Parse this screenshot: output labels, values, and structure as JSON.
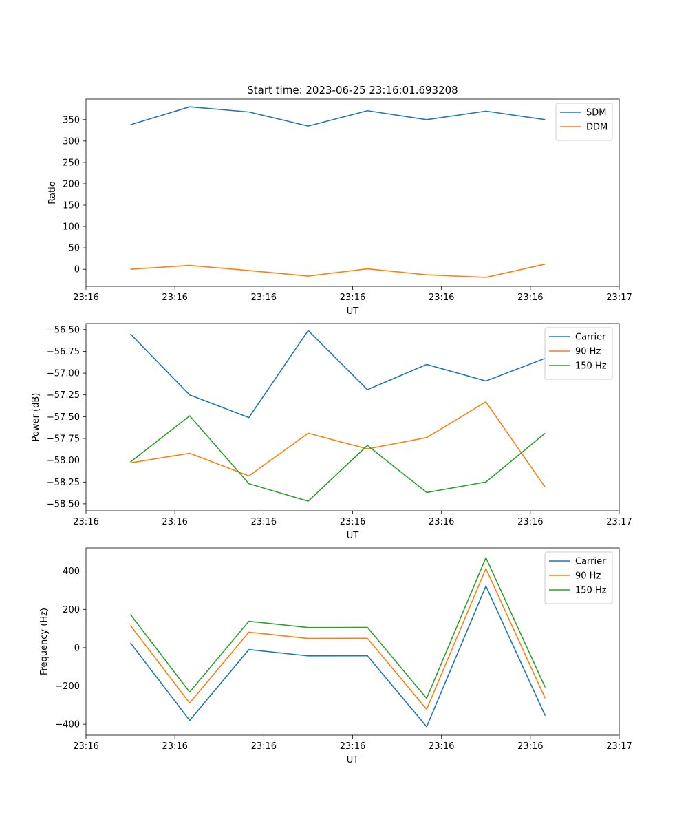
{
  "title": "Start time: 2023-06-25 23:16:01.693208",
  "colors": {
    "blue": "#1f77b4",
    "orange": "#ff7f0e",
    "green": "#2ca02c"
  },
  "chart_data": [
    {
      "type": "line",
      "title": "Start time: 2023-06-25 23:16:01.693208",
      "xlabel": "UT",
      "ylabel": "Ratio",
      "x": [
        1,
        2,
        3,
        4,
        5,
        6,
        7,
        8
      ],
      "xlim": [
        0.25,
        9.25
      ],
      "xticks": [
        0.25,
        1.75,
        3.25,
        4.75,
        6.25,
        7.75,
        9.25
      ],
      "xtick_labels": [
        "23:16",
        "23:16",
        "23:16",
        "23:16",
        "23:16",
        "23:16",
        "23:17"
      ],
      "ylim": [
        -40,
        398
      ],
      "yticks": [
        0,
        50,
        100,
        150,
        200,
        250,
        300,
        350
      ],
      "ytick_labels": [
        "0",
        "50",
        "100",
        "150",
        "200",
        "250",
        "300",
        "350"
      ],
      "grid": false,
      "legend": "top-right",
      "series": [
        {
          "name": "SDM",
          "color": "#1f77b4",
          "values": [
            338,
            380,
            368,
            335,
            371,
            350,
            370,
            350
          ]
        },
        {
          "name": "DDM",
          "color": "#ff7f0e",
          "values": [
            0,
            9,
            -3,
            -16,
            1,
            -13,
            -19,
            12
          ]
        }
      ]
    },
    {
      "type": "line",
      "xlabel": "UT",
      "ylabel": "Power (dB)",
      "x": [
        1,
        2,
        3,
        4,
        5,
        6,
        7,
        8
      ],
      "xlim": [
        0.25,
        9.25
      ],
      "xticks": [
        0.25,
        1.75,
        3.25,
        4.75,
        6.25,
        7.75,
        9.25
      ],
      "xtick_labels": [
        "23:16",
        "23:16",
        "23:16",
        "23:16",
        "23:16",
        "23:16",
        "23:17"
      ],
      "ylim": [
        -58.58,
        -56.43
      ],
      "yticks": [
        -58.5,
        -58.25,
        -58.0,
        -57.75,
        -57.5,
        -57.25,
        -57.0,
        -56.75,
        -56.5
      ],
      "ytick_labels": [
        "−58.50",
        "−58.25",
        "−58.00",
        "−57.75",
        "−57.50",
        "−57.25",
        "−57.00",
        "−56.75",
        "−56.50"
      ],
      "grid": false,
      "legend": "top-right",
      "series": [
        {
          "name": "Carrier",
          "color": "#1f77b4",
          "values": [
            -56.55,
            -57.25,
            -57.51,
            -56.51,
            -57.19,
            -56.9,
            -57.09,
            -56.83
          ]
        },
        {
          "name": "90 Hz",
          "color": "#ff7f0e",
          "values": [
            -58.03,
            -57.92,
            -58.18,
            -57.69,
            -57.87,
            -57.74,
            -57.33,
            -58.31
          ]
        },
        {
          "name": "150 Hz",
          "color": "#2ca02c",
          "values": [
            -58.02,
            -57.49,
            -58.27,
            -58.47,
            -57.83,
            -58.37,
            -58.25,
            -57.69
          ]
        }
      ]
    },
    {
      "type": "line",
      "xlabel": "UT",
      "ylabel": "Frequency (Hz)",
      "x": [
        1,
        2,
        3,
        4,
        5,
        6,
        7,
        8
      ],
      "xlim": [
        0.25,
        9.25
      ],
      "xticks": [
        0.25,
        1.75,
        3.25,
        4.75,
        6.25,
        7.75,
        9.25
      ],
      "xtick_labels": [
        "23:16",
        "23:16",
        "23:16",
        "23:16",
        "23:16",
        "23:16",
        "23:17"
      ],
      "ylim": [
        -457,
        521
      ],
      "yticks": [
        -400,
        -200,
        0,
        200,
        400
      ],
      "ytick_labels": [
        "−400",
        "−200",
        "0",
        "200",
        "400"
      ],
      "grid": false,
      "legend": "top-right",
      "series": [
        {
          "name": "Carrier",
          "color": "#1f77b4",
          "values": [
            25,
            -380,
            -10,
            -43,
            -42,
            -413,
            322,
            -355
          ]
        },
        {
          "name": "90 Hz",
          "color": "#ff7f0e",
          "values": [
            116,
            -289,
            81,
            48,
            49,
            -322,
            413,
            -264
          ]
        },
        {
          "name": "150 Hz",
          "color": "#2ca02c",
          "values": [
            173,
            -232,
            138,
            105,
            106,
            -265,
            470,
            -207
          ]
        }
      ]
    }
  ]
}
